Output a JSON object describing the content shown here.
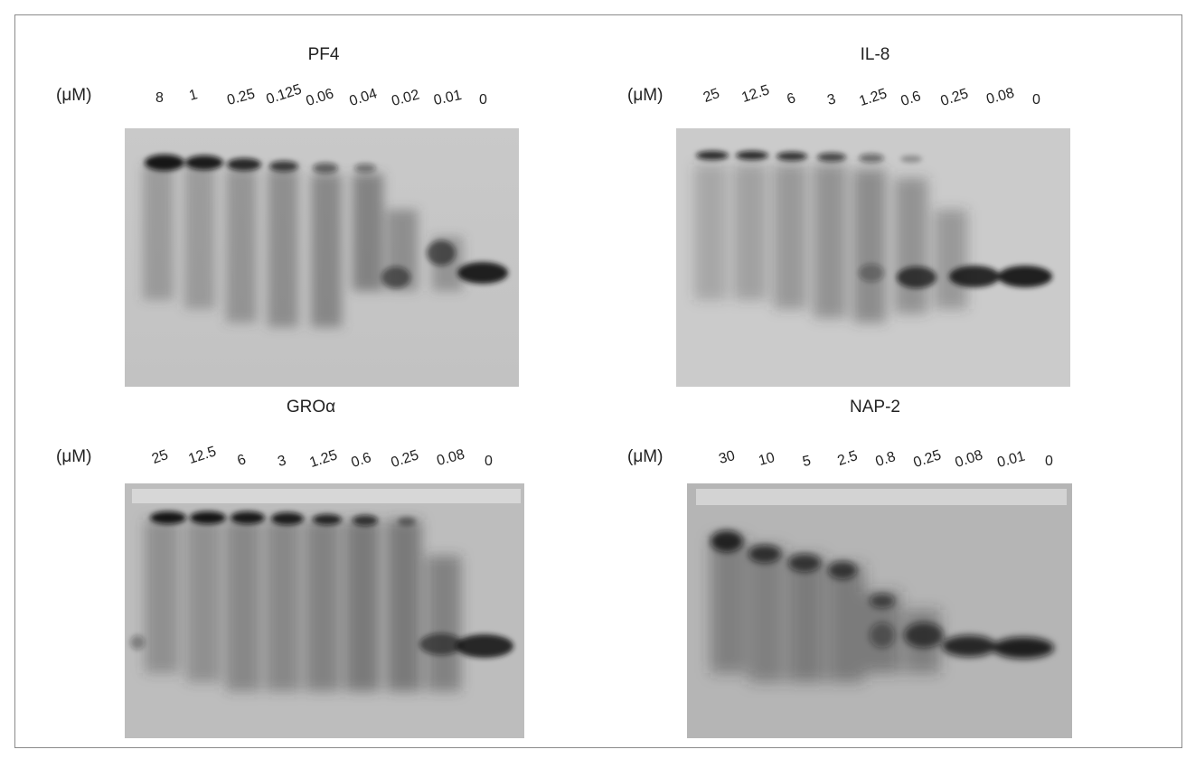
{
  "panels": [
    {
      "title": "PF4",
      "unit": "(μM)",
      "lanes": [
        "8",
        "1",
        "0.25",
        "0.125",
        "0.06",
        "0.04",
        "0.02",
        "0.01",
        "0"
      ]
    },
    {
      "title": "IL-8",
      "unit": "(μM)",
      "lanes": [
        "25",
        "12.5",
        "6",
        "3",
        "1.25",
        "0.6",
        "0.25",
        "0.08",
        "0"
      ]
    },
    {
      "title": "GROα",
      "unit": "(μM)",
      "lanes": [
        "25",
        "12.5",
        "6",
        "3",
        "1.25",
        "0.6",
        "0.25",
        "0.08",
        "0"
      ]
    },
    {
      "title": "NAP-2",
      "unit": "(μM)",
      "lanes": [
        "30",
        "10",
        "5",
        "2.5",
        "0.8",
        "0.25",
        "0.08",
        "0.01",
        "0"
      ]
    }
  ],
  "colors": {
    "frame": "#8a8a8a",
    "gel_background": "#b9b9b9",
    "band": "#1a1a1a"
  }
}
